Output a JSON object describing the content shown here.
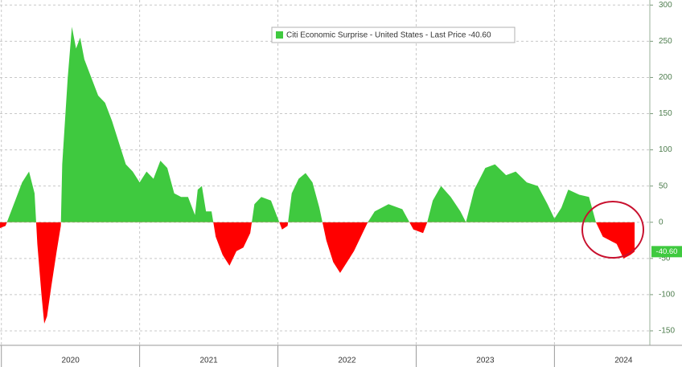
{
  "chart_data": {
    "type": "area",
    "series": [
      {
        "name": "Citi Economic Surprise - United States - Last Price -40.60",
        "color": "#3fc93f",
        "negative_color": "#ff0000",
        "x": [
          2019.99,
          2020.03,
          2020.05,
          2020.1,
          2020.15,
          2020.2,
          2020.24,
          2020.26,
          2020.29,
          2020.31,
          2020.33,
          2020.36,
          2020.4,
          2020.43,
          2020.44,
          2020.48,
          2020.51,
          2020.54,
          2020.57,
          2020.6,
          2020.65,
          2020.7,
          2020.75,
          2020.8,
          2020.85,
          2020.9,
          2020.95,
          2021.0,
          2021.05,
          2021.1,
          2021.15,
          2021.2,
          2021.25,
          2021.3,
          2021.35,
          2021.4,
          2021.42,
          2021.45,
          2021.48,
          2021.52,
          2021.55,
          2021.6,
          2021.65,
          2021.7,
          2021.75,
          2021.8,
          2021.83,
          2021.88,
          2021.95,
          2022.0,
          2022.03,
          2022.07,
          2022.1,
          2022.15,
          2022.2,
          2022.25,
          2022.3,
          2022.35,
          2022.4,
          2022.45,
          2022.5,
          2022.55,
          2022.6,
          2022.65,
          2022.7,
          2022.8,
          2022.9,
          2022.98,
          2023.05,
          2023.08,
          2023.12,
          2023.18,
          2023.25,
          2023.32,
          2023.36,
          2023.42,
          2023.5,
          2023.57,
          2023.65,
          2023.72,
          2023.8,
          2023.88,
          2023.95,
          2024.0,
          2024.05,
          2024.1,
          2024.18,
          2024.25,
          2024.3,
          2024.35,
          2024.4,
          2024.45,
          2024.5,
          2024.55,
          2024.58
        ],
        "values": [
          -8,
          -5,
          5,
          30,
          55,
          70,
          40,
          -30,
          -100,
          -140,
          -130,
          -90,
          -40,
          -5,
          80,
          200,
          270,
          240,
          255,
          225,
          200,
          175,
          165,
          140,
          110,
          80,
          70,
          55,
          70,
          60,
          85,
          75,
          40,
          35,
          35,
          10,
          45,
          50,
          15,
          15,
          -20,
          -45,
          -60,
          -40,
          -35,
          -15,
          25,
          35,
          30,
          5,
          -10,
          -5,
          40,
          60,
          68,
          55,
          20,
          -25,
          -55,
          -70,
          -55,
          -40,
          -20,
          0,
          15,
          25,
          18,
          -10,
          -15,
          0,
          30,
          50,
          35,
          15,
          0,
          45,
          75,
          80,
          65,
          70,
          55,
          50,
          25,
          5,
          20,
          45,
          38,
          35,
          0,
          -20,
          -25,
          -30,
          -50,
          -45,
          -40.6
        ],
        "last_value_label": "-40.60"
      }
    ],
    "xlim": [
      2019.99,
      2024.69
    ],
    "xticks": [
      {
        "value": 2020.5,
        "label": "2020"
      },
      {
        "value": 2021.5,
        "label": "2021"
      },
      {
        "value": 2022.5,
        "label": "2022"
      },
      {
        "value": 2023.5,
        "label": "2023"
      },
      {
        "value": 2024.5,
        "label": "2024"
      }
    ],
    "ylim": [
      -170,
      307
    ],
    "yticks": [
      -150,
      -100,
      -50,
      0,
      50,
      100,
      150,
      200,
      250,
      300
    ],
    "grid": true,
    "legend": "top"
  }
}
